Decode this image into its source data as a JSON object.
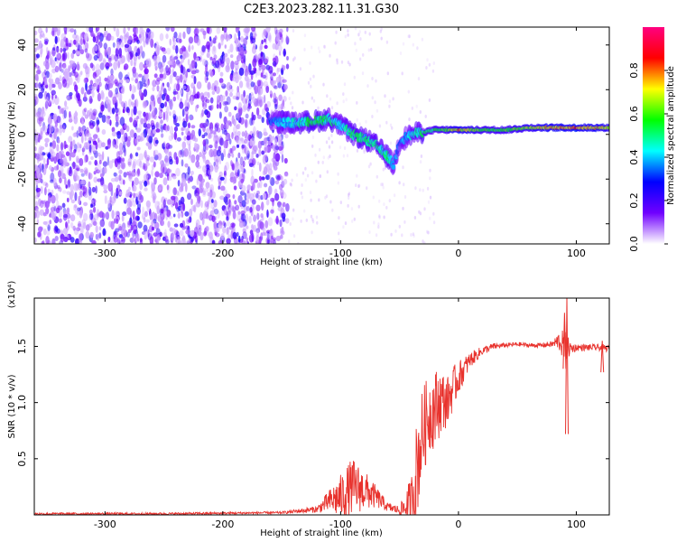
{
  "title": "C2E3.2023.282.11.31.G30",
  "chart_data": [
    {
      "type": "heatmap",
      "xlabel": "Height of straight line (km)",
      "ylabel": "Frequency (Hz)",
      "xlim": [
        -360,
        128
      ],
      "ylim": [
        -49,
        48
      ],
      "xticks": [
        -300,
        -200,
        -100,
        0,
        100
      ],
      "yticks": [
        -40,
        -20,
        0,
        20,
        40
      ],
      "colorbar": {
        "label": "Normalized spectral amplitude",
        "range": [
          0,
          1
        ],
        "ticks": [
          "0.0",
          "0.2",
          "0.4",
          "0.6",
          "0.8"
        ],
        "colors": [
          "#ffffff",
          "#7000ff",
          "#0000ff",
          "#00ffff",
          "#00ff00",
          "#ffff00",
          "#ff0000",
          "#ff0080"
        ]
      },
      "ridge": {
        "x": [
          -160,
          -140,
          -120,
          -110,
          -100,
          -90,
          -80,
          -70,
          -60,
          -55,
          -50,
          -40,
          -30,
          -20,
          -10,
          0,
          20,
          40,
          60,
          80,
          100,
          128
        ],
        "freq": [
          6,
          5,
          6,
          7,
          4,
          0,
          -2,
          -5,
          -10,
          -14,
          -3,
          0,
          1,
          2,
          2,
          2,
          2,
          2,
          3,
          3,
          3,
          3
        ],
        "amplitude": [
          0.35,
          0.45,
          0.55,
          0.5,
          0.45,
          0.5,
          0.5,
          0.5,
          0.5,
          0.4,
          0.35,
          0.45,
          0.5,
          0.55,
          0.6,
          0.75,
          0.6,
          0.6,
          0.65,
          0.75,
          0.8,
          0.7
        ]
      }
    },
    {
      "type": "line",
      "xlabel": "Height of straight line (km)",
      "ylabel": "SNR (10 * v/v)",
      "y_multiplier": "(x10⁴)",
      "xlim": [
        -360,
        128
      ],
      "ylim": [
        0,
        1.93
      ],
      "xticks": [
        -300,
        -200,
        -100,
        0,
        100
      ],
      "yticks": [
        0.5,
        1.0,
        1.5
      ],
      "color": "#e8322d",
      "envelope": {
        "x": [
          -360,
          -250,
          -150,
          -120,
          -110,
          -100,
          -90,
          -80,
          -70,
          -60,
          -50,
          -40,
          -35,
          -30,
          -25,
          -20,
          -15,
          -10,
          -5,
          0,
          10,
          20,
          30,
          40,
          50,
          60,
          70,
          80,
          85,
          90,
          95,
          100,
          110,
          120,
          128
        ],
        "mid": [
          0.01,
          0.01,
          0.02,
          0.05,
          0.12,
          0.16,
          0.25,
          0.22,
          0.16,
          0.07,
          0.04,
          0.1,
          0.45,
          0.75,
          0.9,
          0.95,
          1.02,
          1.0,
          1.12,
          1.22,
          1.38,
          1.46,
          1.5,
          1.51,
          1.52,
          1.51,
          1.51,
          1.52,
          1.55,
          1.5,
          1.48,
          1.49,
          1.49,
          1.49,
          1.48
        ],
        "amp": [
          0.01,
          0.01,
          0.01,
          0.03,
          0.1,
          0.2,
          0.26,
          0.18,
          0.1,
          0.04,
          0.04,
          0.25,
          0.45,
          0.4,
          0.35,
          0.35,
          0.3,
          0.22,
          0.2,
          0.15,
          0.07,
          0.04,
          0.03,
          0.02,
          0.02,
          0.02,
          0.02,
          0.03,
          0.08,
          0.15,
          0.06,
          0.03,
          0.03,
          0.03,
          0.03
        ]
      },
      "spikes": [
        {
          "x": 92,
          "high": 1.93,
          "low": 0.72
        },
        {
          "x": 90,
          "high": 1.8,
          "low": 1.3
        },
        {
          "x": 122,
          "high": 1.55,
          "low": 1.27
        }
      ]
    }
  ]
}
